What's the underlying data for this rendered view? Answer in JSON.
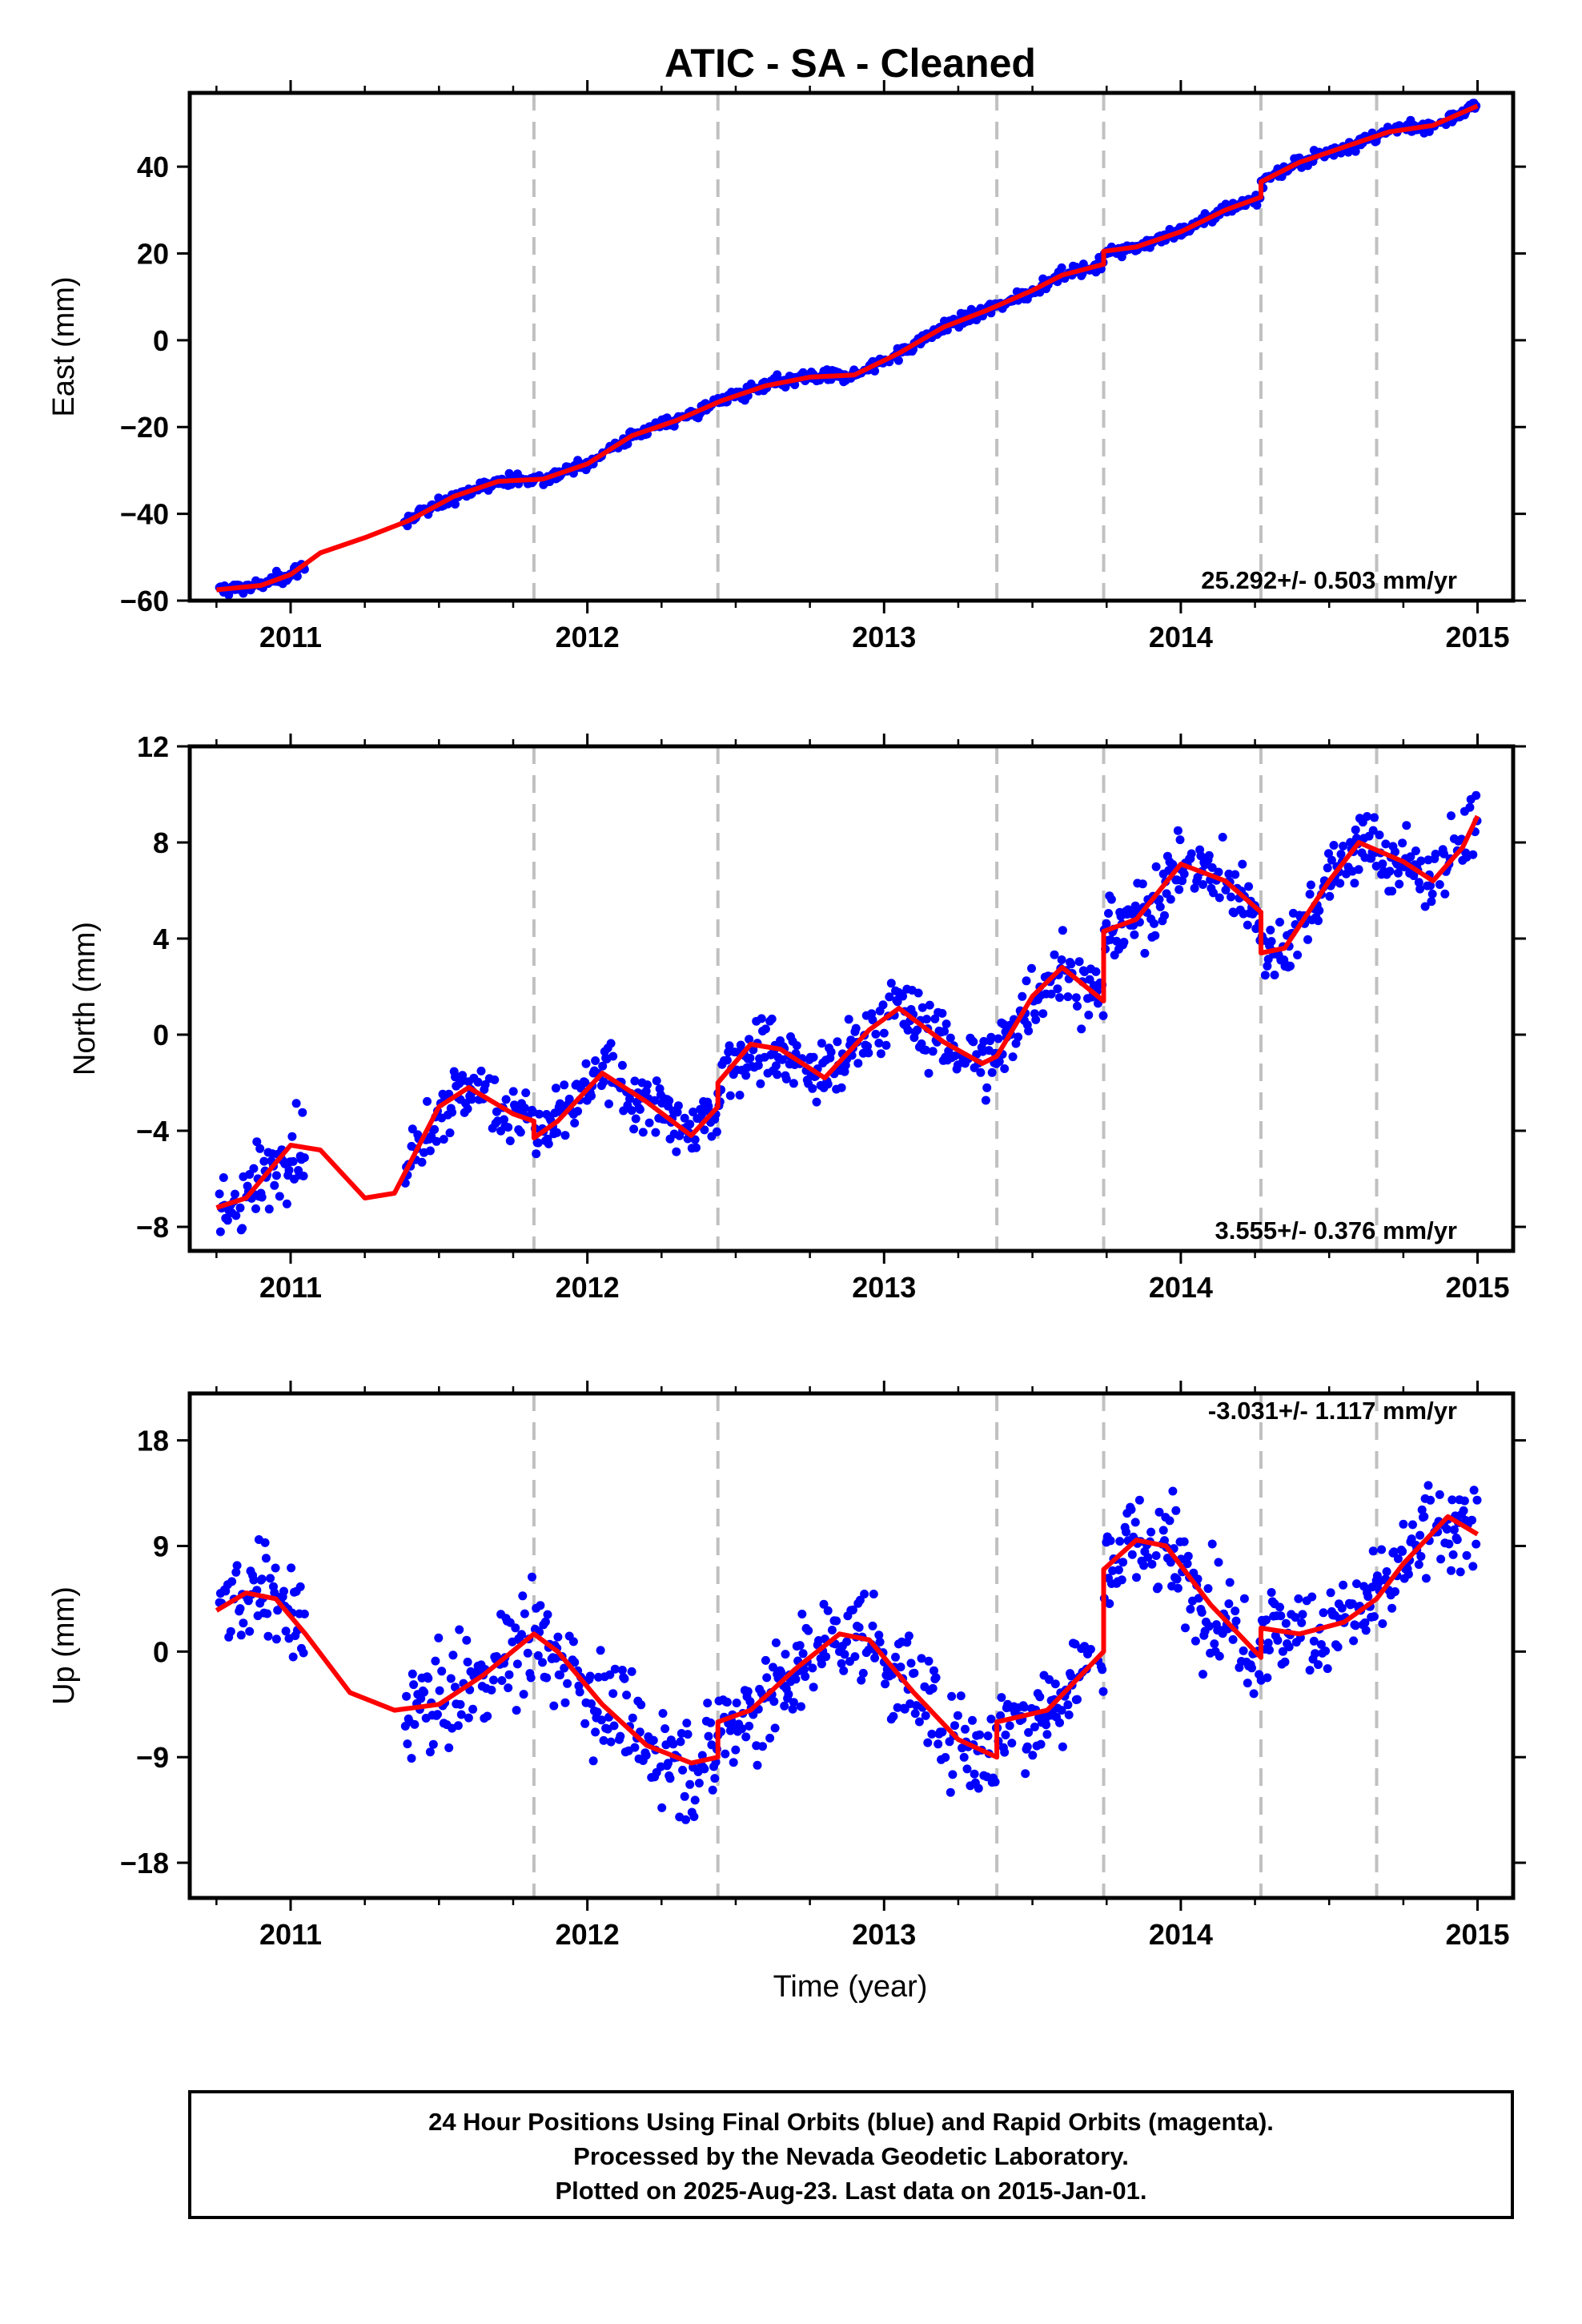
{
  "title": "ATIC  - SA - Cleaned",
  "x_axis_label": "Time (year)",
  "footer": {
    "line1": "24 Hour Positions Using Final Orbits (blue) and Rapid Orbits (magenta).",
    "line2": "Processed by the Nevada Geodetic Laboratory.",
    "line3": "Plotted on 2025-Aug-23. Last data on 2015-Jan-01."
  },
  "colors": {
    "data_points": "#0000ff",
    "model_line": "#ff0000",
    "equipment_change_lines": "#c0c0c0",
    "frame": "#000000"
  },
  "chart_data": [
    {
      "type": "scatter",
      "name": "east",
      "ylabel": "East (mm)",
      "xlim": [
        2010.66,
        2015.12
      ],
      "ylim": [
        -60,
        57
      ],
      "xticks": [
        2011,
        2012,
        2013,
        2014,
        2015
      ],
      "yticks": [
        -60,
        -40,
        -20,
        0,
        20,
        40
      ],
      "rate_label": "25.292+/- 0.503 mm/yr",
      "step_epochs": [
        2011.82,
        2012.44,
        2013.38,
        2013.74,
        2014.27,
        2014.66
      ],
      "model_curve": [
        [
          2010.75,
          -57.5
        ],
        [
          2010.9,
          -56.5
        ],
        [
          2011.0,
          -54
        ],
        [
          2011.1,
          -49
        ],
        [
          2011.25,
          -45.5
        ],
        [
          2011.4,
          -41.5
        ],
        [
          2011.55,
          -36
        ],
        [
          2011.7,
          -32.5
        ],
        [
          2011.85,
          -32
        ],
        [
          2012.0,
          -28.5
        ],
        [
          2012.15,
          -22
        ],
        [
          2012.3,
          -18.5
        ],
        [
          2012.45,
          -14
        ],
        [
          2012.6,
          -10.5
        ],
        [
          2012.75,
          -8.5
        ],
        [
          2012.9,
          -8
        ],
        [
          2013.05,
          -3
        ],
        [
          2013.2,
          3
        ],
        [
          2013.35,
          7
        ],
        [
          2013.5,
          11.5
        ],
        [
          2013.6,
          15
        ],
        [
          2013.74,
          17.5
        ],
        [
          2013.74,
          20.5
        ],
        [
          2013.85,
          21.5
        ],
        [
          2014.0,
          25
        ],
        [
          2014.15,
          30
        ],
        [
          2014.27,
          33
        ],
        [
          2014.27,
          36.5
        ],
        [
          2014.4,
          41
        ],
        [
          2014.55,
          44.5
        ],
        [
          2014.7,
          48
        ],
        [
          2014.85,
          49.5
        ],
        [
          2015.0,
          54
        ]
      ]
    },
    {
      "type": "scatter",
      "name": "north",
      "ylabel": "North (mm)",
      "xlim": [
        2010.66,
        2015.12
      ],
      "ylim": [
        -9,
        12
      ],
      "xticks": [
        2011,
        2012,
        2013,
        2014,
        2015
      ],
      "yticks": [
        -8,
        -4,
        0,
        4,
        8,
        12
      ],
      "rate_label": "3.555+/- 0.376 mm/yr",
      "step_epochs": [
        2011.82,
        2012.44,
        2013.38,
        2013.74,
        2014.27,
        2014.66
      ],
      "model_curve": [
        [
          2010.75,
          -7.2
        ],
        [
          2010.85,
          -6.8
        ],
        [
          2011.0,
          -4.6
        ],
        [
          2011.1,
          -4.8
        ],
        [
          2011.25,
          -6.8
        ],
        [
          2011.35,
          -6.6
        ],
        [
          2011.5,
          -3
        ],
        [
          2011.6,
          -2.2
        ],
        [
          2011.75,
          -3.3
        ],
        [
          2011.82,
          -3.6
        ],
        [
          2011.82,
          -4.3
        ],
        [
          2011.9,
          -3.6
        ],
        [
          2012.05,
          -1.6
        ],
        [
          2012.2,
          -2.8
        ],
        [
          2012.35,
          -4.2
        ],
        [
          2012.44,
          -3
        ],
        [
          2012.44,
          -2
        ],
        [
          2012.55,
          -0.4
        ],
        [
          2012.65,
          -0.6
        ],
        [
          2012.8,
          -1.8
        ],
        [
          2012.95,
          0.2
        ],
        [
          2013.05,
          1.1
        ],
        [
          2013.2,
          -0.3
        ],
        [
          2013.33,
          -1.2
        ],
        [
          2013.38,
          -0.9
        ],
        [
          2013.5,
          1.6
        ],
        [
          2013.6,
          2.8
        ],
        [
          2013.74,
          1.4
        ],
        [
          2013.74,
          4.3
        ],
        [
          2013.85,
          4.8
        ],
        [
          2014.0,
          7.1
        ],
        [
          2014.15,
          6.4
        ],
        [
          2014.27,
          5.1
        ],
        [
          2014.27,
          3.4
        ],
        [
          2014.35,
          3.6
        ],
        [
          2014.5,
          6.4
        ],
        [
          2014.6,
          8
        ],
        [
          2014.75,
          7.2
        ],
        [
          2014.85,
          6.4
        ],
        [
          2014.95,
          7.8
        ],
        [
          2015.0,
          9.1
        ]
      ]
    },
    {
      "type": "scatter",
      "name": "up",
      "ylabel": "Up (mm)",
      "xlim": [
        2010.66,
        2015.12
      ],
      "ylim": [
        -21,
        22
      ],
      "xticks": [
        2011,
        2012,
        2013,
        2014,
        2015
      ],
      "yticks": [
        -18,
        -9,
        0,
        9,
        18
      ],
      "rate_label": "-3.031+/- 1.117 mm/yr",
      "step_epochs": [
        2011.82,
        2012.44,
        2013.38,
        2013.74,
        2014.27,
        2014.66
      ],
      "model_curve": [
        [
          2010.75,
          3.5
        ],
        [
          2010.85,
          5
        ],
        [
          2010.95,
          4.5
        ],
        [
          2011.05,
          1.5
        ],
        [
          2011.2,
          -3.5
        ],
        [
          2011.35,
          -5
        ],
        [
          2011.5,
          -4.5
        ],
        [
          2011.65,
          -2
        ],
        [
          2011.82,
          1.5
        ],
        [
          2011.9,
          0
        ],
        [
          2012.05,
          -4.5
        ],
        [
          2012.2,
          -8
        ],
        [
          2012.35,
          -9.5
        ],
        [
          2012.44,
          -9
        ],
        [
          2012.44,
          -6
        ],
        [
          2012.55,
          -5
        ],
        [
          2012.7,
          -1.5
        ],
        [
          2012.85,
          1.5
        ],
        [
          2012.95,
          1
        ],
        [
          2013.1,
          -3.5
        ],
        [
          2013.25,
          -7.5
        ],
        [
          2013.38,
          -9
        ],
        [
          2013.38,
          -6
        ],
        [
          2013.55,
          -5
        ],
        [
          2013.74,
          0
        ],
        [
          2013.74,
          7
        ],
        [
          2013.85,
          9.5
        ],
        [
          2013.95,
          9
        ],
        [
          2014.1,
          4
        ],
        [
          2014.27,
          -0.5
        ],
        [
          2014.27,
          2
        ],
        [
          2014.4,
          1.5
        ],
        [
          2014.55,
          2.5
        ],
        [
          2014.66,
          4.5
        ],
        [
          2014.75,
          7.5
        ],
        [
          2014.9,
          11.5
        ],
        [
          2015.0,
          10
        ]
      ]
    }
  ]
}
